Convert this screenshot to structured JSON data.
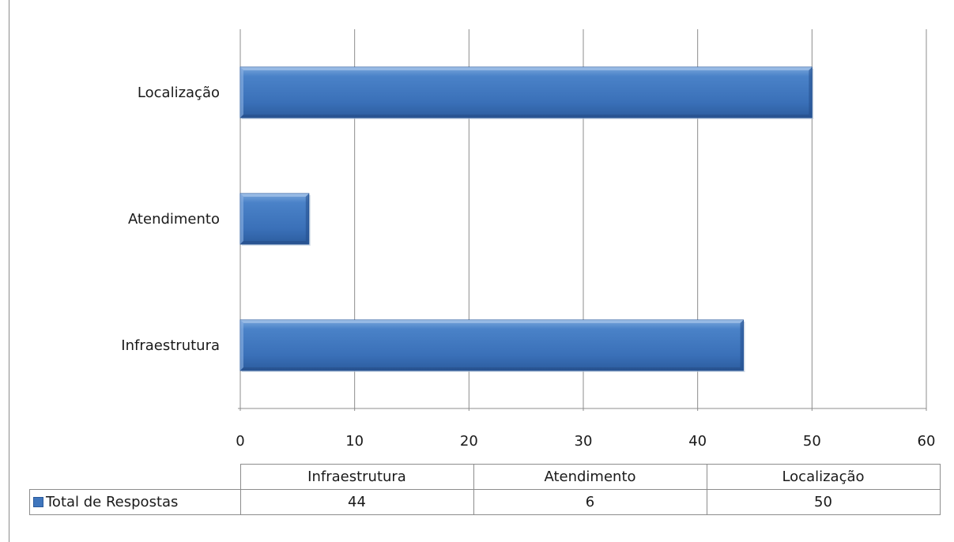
{
  "chart_data": {
    "type": "bar",
    "orientation": "horizontal",
    "categories": [
      "Infraestrutura",
      "Atendimento",
      "Localização"
    ],
    "series": [
      {
        "name": "Total de Respostas",
        "values": [
          44,
          6,
          50
        ]
      }
    ],
    "xlim": [
      0,
      60
    ],
    "x_ticks": [
      0,
      10,
      20,
      30,
      40,
      50,
      60
    ],
    "grid": "vertical",
    "legend": "data-table",
    "bar_color": "#3f76bd"
  }
}
